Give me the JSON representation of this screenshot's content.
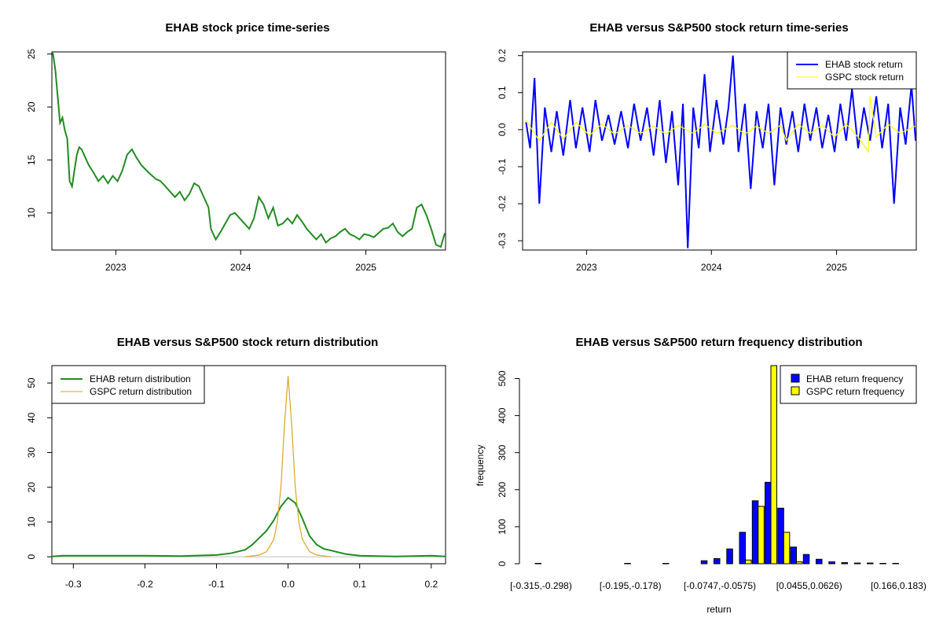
{
  "colors": {
    "ehab_price": "#228B22",
    "ehab_return": "#0000FF",
    "gspc_return": "#FFFF00",
    "ehab_density": "#228B22",
    "gspc_density": "#DAA520",
    "ehab_hist": "#0000FF",
    "gspc_hist": "#FFFF00"
  },
  "chart_data": [
    {
      "type": "line",
      "title": "EHAB stock price time-series",
      "xlabel": "",
      "ylabel": "",
      "x_ticks": [
        "2023",
        "2024",
        "2025"
      ],
      "y_ticks": [
        "10",
        "15",
        "20",
        "25"
      ],
      "xlim": [
        "2022-06-28",
        "2025-08-22"
      ],
      "ylim": [
        6.5,
        25.2
      ],
      "grid": false,
      "series": [
        {
          "x": [
            "2022-07-01",
            "2022-07-08",
            "2022-07-15",
            "2022-07-22",
            "2022-07-29",
            "2022-08-05",
            "2022-08-12",
            "2022-08-19",
            "2022-08-26",
            "2022-09-02",
            "2022-09-09",
            "2022-09-16",
            "2022-09-23",
            "2022-09-30",
            "2022-10-14",
            "2022-10-28",
            "2022-11-11",
            "2022-11-25",
            "2022-12-09",
            "2022-12-23",
            "2023-01-06",
            "2023-01-20",
            "2023-02-03",
            "2023-02-17",
            "2023-03-03",
            "2023-03-17",
            "2023-04-07",
            "2023-04-28",
            "2023-05-12",
            "2023-05-26",
            "2023-06-09",
            "2023-06-23",
            "2023-07-07",
            "2023-07-21",
            "2023-08-04",
            "2023-08-18",
            "2023-09-01",
            "2023-09-15",
            "2023-09-29",
            "2023-10-06",
            "2023-10-20",
            "2023-11-03",
            "2023-11-17",
            "2023-12-01",
            "2023-12-15",
            "2023-12-29",
            "2024-01-12",
            "2024-01-26",
            "2024-02-09",
            "2024-02-23",
            "2024-03-08",
            "2024-03-22",
            "2024-04-05",
            "2024-04-19",
            "2024-05-03",
            "2024-05-17",
            "2024-05-31",
            "2024-06-14",
            "2024-06-28",
            "2024-07-12",
            "2024-07-26",
            "2024-08-09",
            "2024-08-23",
            "2024-09-06",
            "2024-09-20",
            "2024-10-04",
            "2024-10-18",
            "2024-11-01",
            "2024-11-15",
            "2024-11-29",
            "2024-12-13",
            "2024-12-27",
            "2025-01-10",
            "2025-01-24",
            "2025-02-07",
            "2025-02-21",
            "2025-03-07",
            "2025-03-21",
            "2025-04-04",
            "2025-04-18",
            "2025-05-02",
            "2025-05-16",
            "2025-05-30",
            "2025-06-13",
            "2025-06-27",
            "2025-07-11",
            "2025-07-25",
            "2025-08-08",
            "2025-08-20"
          ],
          "values": [
            25.1,
            23.5,
            21.0,
            18.5,
            19.0,
            17.8,
            17.0,
            13.0,
            12.5,
            14.0,
            15.5,
            16.2,
            16.0,
            15.5,
            14.5,
            13.8,
            13.0,
            13.5,
            12.8,
            13.5,
            13.0,
            14.0,
            15.5,
            16.0,
            15.2,
            14.5,
            13.8,
            13.2,
            13.0,
            12.5,
            12.0,
            11.5,
            12.0,
            11.2,
            11.8,
            12.8,
            12.5,
            11.5,
            10.5,
            8.5,
            7.5,
            8.2,
            9.0,
            9.8,
            10.0,
            9.5,
            9.0,
            8.5,
            9.5,
            11.5,
            10.8,
            9.5,
            10.5,
            8.8,
            9.0,
            9.5,
            9.0,
            9.8,
            9.2,
            8.5,
            8.0,
            7.5,
            8.0,
            7.2,
            7.6,
            7.8,
            8.2,
            8.5,
            8.0,
            7.8,
            7.5,
            8.0,
            7.9,
            7.7,
            8.1,
            8.5,
            8.6,
            9.0,
            8.2,
            7.8,
            8.2,
            8.5,
            10.5,
            10.8,
            9.8,
            8.5,
            7.0,
            6.8,
            8.1
          ]
        }
      ]
    },
    {
      "type": "line",
      "title": "EHAB versus S&P500 stock return time-series",
      "xlabel": "",
      "ylabel": "",
      "x_ticks": [
        "2023",
        "2024",
        "2025"
      ],
      "y_ticks": [
        "-0.3",
        "-0.2",
        "-0.1",
        "0.0",
        "0.1",
        "0.2"
      ],
      "xlim": [
        "2022-06-28",
        "2025-08-22"
      ],
      "ylim": [
        -0.325,
        0.21
      ],
      "grid": false,
      "legend": "top-right",
      "series": [
        {
          "name": "EHAB stock return",
          "x": [
            "2022-07-08",
            "2022-07-20",
            "2022-08-02",
            "2022-08-16",
            "2022-09-01",
            "2022-09-20",
            "2022-10-06",
            "2022-10-25",
            "2022-11-14",
            "2022-12-01",
            "2022-12-20",
            "2023-01-10",
            "2023-01-27",
            "2023-02-15",
            "2023-03-06",
            "2023-03-24",
            "2023-04-12",
            "2023-05-02",
            "2023-05-20",
            "2023-06-08",
            "2023-06-27",
            "2023-07-16",
            "2023-08-03",
            "2023-08-21",
            "2023-09-08",
            "2023-09-26",
            "2023-10-10",
            "2023-10-24",
            "2023-11-09",
            "2023-11-25",
            "2023-12-12",
            "2023-12-28",
            "2024-01-16",
            "2024-02-05",
            "2024-02-20",
            "2024-03-04",
            "2024-03-20",
            "2024-04-08",
            "2024-04-25",
            "2024-05-12",
            "2024-05-30",
            "2024-06-16",
            "2024-07-03",
            "2024-07-21",
            "2024-08-07",
            "2024-08-25",
            "2024-09-11",
            "2024-09-29",
            "2024-10-16",
            "2024-11-03",
            "2024-11-20",
            "2024-12-08",
            "2024-12-26",
            "2025-01-12",
            "2025-01-29",
            "2025-02-15",
            "2025-03-05",
            "2025-03-22",
            "2025-04-09",
            "2025-04-27",
            "2025-05-14",
            "2025-06-01",
            "2025-06-18",
            "2025-07-06",
            "2025-07-22",
            "2025-08-08",
            "2025-08-20"
          ],
          "values": [
            0.02,
            -0.05,
            0.14,
            -0.2,
            0.06,
            -0.06,
            0.05,
            -0.07,
            0.08,
            -0.05,
            0.06,
            -0.06,
            0.08,
            -0.03,
            0.04,
            -0.04,
            0.05,
            -0.05,
            0.07,
            -0.03,
            0.06,
            -0.07,
            0.08,
            -0.09,
            0.05,
            -0.15,
            0.07,
            -0.32,
            0.06,
            -0.05,
            0.15,
            -0.06,
            0.08,
            -0.04,
            0.06,
            0.2,
            -0.06,
            0.07,
            -0.16,
            0.05,
            -0.05,
            0.07,
            -0.15,
            0.06,
            -0.04,
            0.05,
            -0.06,
            0.07,
            -0.03,
            0.06,
            -0.05,
            0.04,
            -0.06,
            0.07,
            -0.03,
            0.11,
            -0.05,
            0.06,
            -0.03,
            0.09,
            -0.05,
            0.07,
            -0.2,
            0.06,
            -0.04,
            0.12,
            -0.03
          ]
        },
        {
          "name": "GSPC stock return",
          "x": [
            "2022-07-08",
            "2022-08-16",
            "2022-09-20",
            "2022-10-25",
            "2022-12-01",
            "2023-01-10",
            "2023-02-15",
            "2023-03-24",
            "2023-05-02",
            "2023-06-08",
            "2023-07-16",
            "2023-08-21",
            "2023-09-26",
            "2023-11-09",
            "2023-12-12",
            "2024-01-16",
            "2024-03-04",
            "2024-04-08",
            "2024-05-12",
            "2024-06-16",
            "2024-07-21",
            "2024-08-07",
            "2024-09-11",
            "2024-10-16",
            "2024-11-20",
            "2024-12-26",
            "2025-01-29",
            "2025-03-05",
            "2025-04-04",
            "2025-04-09",
            "2025-04-27",
            "2025-06-01",
            "2025-07-06",
            "2025-08-20"
          ],
          "values": [
            0.025,
            -0.03,
            0.02,
            -0.025,
            0.02,
            -0.015,
            0.015,
            -0.012,
            0.012,
            -0.01,
            0.01,
            -0.012,
            0.012,
            -0.01,
            0.015,
            -0.01,
            0.012,
            -0.012,
            0.01,
            -0.01,
            0.012,
            -0.03,
            0.015,
            -0.01,
            0.012,
            -0.02,
            0.015,
            -0.02,
            -0.06,
            0.09,
            -0.02,
            0.015,
            -0.01,
            0.01
          ]
        }
      ]
    },
    {
      "type": "line",
      "title": "EHAB versus S&P500 stock return distribution",
      "xlabel": "",
      "ylabel": "",
      "x_ticks": [
        "-0.3",
        "-0.2",
        "-0.1",
        "0.0",
        "0.1",
        "0.2"
      ],
      "y_ticks": [
        "0",
        "10",
        "20",
        "30",
        "40",
        "50"
      ],
      "xlim": [
        -0.33,
        0.22
      ],
      "ylim": [
        -2,
        55
      ],
      "grid": false,
      "legend": "top-left",
      "series": [
        {
          "name": "EHAB return distribution",
          "x": [
            -0.33,
            -0.315,
            -0.2,
            -0.15,
            -0.1,
            -0.08,
            -0.06,
            -0.05,
            -0.04,
            -0.03,
            -0.02,
            -0.01,
            0.0,
            0.01,
            0.02,
            0.03,
            0.04,
            0.05,
            0.06,
            0.08,
            0.1,
            0.15,
            0.2,
            0.22
          ],
          "values": [
            0.1,
            0.3,
            0.3,
            0.2,
            0.5,
            1.0,
            2.0,
            3.5,
            5.5,
            7.5,
            10.5,
            14.5,
            17.0,
            15.5,
            11.0,
            6.0,
            3.5,
            2.3,
            1.8,
            0.8,
            0.3,
            0.1,
            0.3,
            0.1
          ]
        },
        {
          "name": "GSPC return distribution",
          "x": [
            -0.06,
            -0.04,
            -0.03,
            -0.02,
            -0.015,
            -0.01,
            -0.005,
            0.0,
            0.005,
            0.01,
            0.015,
            0.02,
            0.03,
            0.04,
            0.06
          ],
          "values": [
            0.0,
            0.5,
            1.5,
            5.0,
            10.0,
            20.0,
            38.0,
            52.0,
            38.0,
            20.0,
            10.0,
            5.0,
            1.5,
            0.5,
            0.0
          ]
        }
      ]
    },
    {
      "type": "bar",
      "title": "EHAB versus S&P500 return frequency distribution",
      "xlabel": "return",
      "ylabel": "frequency",
      "x_tick_labels": [
        "[-0.315,-0.298)",
        "[-0.195,-0.178)",
        "[-0.0747,-0.0575)",
        "[0.0455,0.0626)",
        "[0.166,0.183)"
      ],
      "x_tick_label_bins": [
        0,
        7,
        14,
        21,
        28
      ],
      "y_ticks": [
        "0",
        "100",
        "200",
        "300",
        "400",
        "500"
      ],
      "ylim": [
        0,
        535
      ],
      "legend": "top-right",
      "series": [
        {
          "name": "EHAB return frequency",
          "values": [
            1,
            0,
            0,
            0,
            0,
            0,
            0,
            1,
            0,
            0,
            1,
            0,
            0,
            8,
            14,
            40,
            85,
            170,
            220,
            150,
            45,
            25,
            12,
            5,
            3,
            2,
            2,
            1,
            1
          ]
        },
        {
          "name": "GSPC return frequency",
          "values": [
            0,
            0,
            0,
            0,
            0,
            0,
            0,
            0,
            0,
            0,
            0,
            0,
            0,
            0,
            0,
            0,
            10,
            155,
            560,
            85,
            5,
            0,
            0,
            0,
            0,
            0,
            0,
            0,
            0
          ]
        }
      ]
    }
  ]
}
